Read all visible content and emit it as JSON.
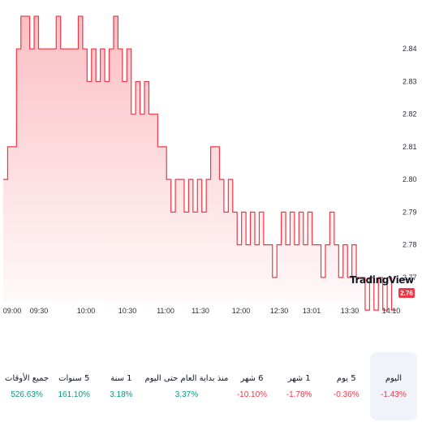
{
  "chart_data": {
    "type": "area",
    "ylim": [
      2.764,
      2.848
    ],
    "y_ticks": [
      "2.84",
      "2.83",
      "2.82",
      "2.81",
      "2.80",
      "2.79",
      "2.78",
      "2.77"
    ],
    "y_tick_values": [
      2.84,
      2.83,
      2.82,
      2.81,
      2.8,
      2.79,
      2.78,
      2.77
    ],
    "x_ticks": [
      "09:00",
      "09:30",
      "10:00",
      "10:30",
      "11:00",
      "11:30",
      "12:00",
      "12:30",
      "13:01",
      "13:30",
      "14:10"
    ],
    "last_price": "2.76",
    "line_color": "#f23645",
    "series": [
      {
        "values": [
          2.8,
          2.81,
          2.81,
          2.84,
          2.85,
          2.85,
          2.84,
          2.85,
          2.84,
          2.84,
          2.84,
          2.84,
          2.85,
          2.84,
          2.84,
          2.84,
          2.84,
          2.85,
          2.84,
          2.83,
          2.84,
          2.83,
          2.84,
          2.83,
          2.84,
          2.85,
          2.84,
          2.83,
          2.84,
          2.82,
          2.83,
          2.82,
          2.83,
          2.82,
          2.82,
          2.81,
          2.81,
          2.8,
          2.79,
          2.8,
          2.8,
          2.79,
          2.8,
          2.79,
          2.8,
          2.79,
          2.8,
          2.81,
          2.81,
          2.8,
          2.79,
          2.8,
          2.79,
          2.78,
          2.79,
          2.78,
          2.79,
          2.78,
          2.79,
          2.78,
          2.78,
          2.77,
          2.78,
          2.79,
          2.78,
          2.79,
          2.78,
          2.79,
          2.78,
          2.79,
          2.78,
          2.78,
          2.77,
          2.78,
          2.79,
          2.78,
          2.77,
          2.78,
          2.77,
          2.78,
          2.77,
          2.77,
          2.76,
          2.77,
          2.76,
          2.77,
          2.76,
          2.77,
          2.76,
          2.76
        ]
      }
    ]
  },
  "brand": "TradingView",
  "periods": [
    {
      "label": "اليوم",
      "value": "-1.43%",
      "trend": "neg",
      "active": true
    },
    {
      "label": "5 يوم",
      "value": "-0.36%",
      "trend": "neg",
      "active": false
    },
    {
      "label": "1 شهر",
      "value": "-1.78%",
      "trend": "neg",
      "active": false
    },
    {
      "label": "6 شهر",
      "value": "-10.10%",
      "trend": "neg",
      "active": false
    },
    {
      "label": "منذ بداية العام حتى اليوم",
      "value": "3.37%",
      "trend": "pos",
      "active": false
    },
    {
      "label": "1 سنة",
      "value": "3.18%",
      "trend": "pos",
      "active": false
    },
    {
      "label": "5 سنوات",
      "value": "161.10%",
      "trend": "pos",
      "active": false
    },
    {
      "label": "جميع الأوقات",
      "value": "526.63%",
      "trend": "pos",
      "active": false
    }
  ]
}
